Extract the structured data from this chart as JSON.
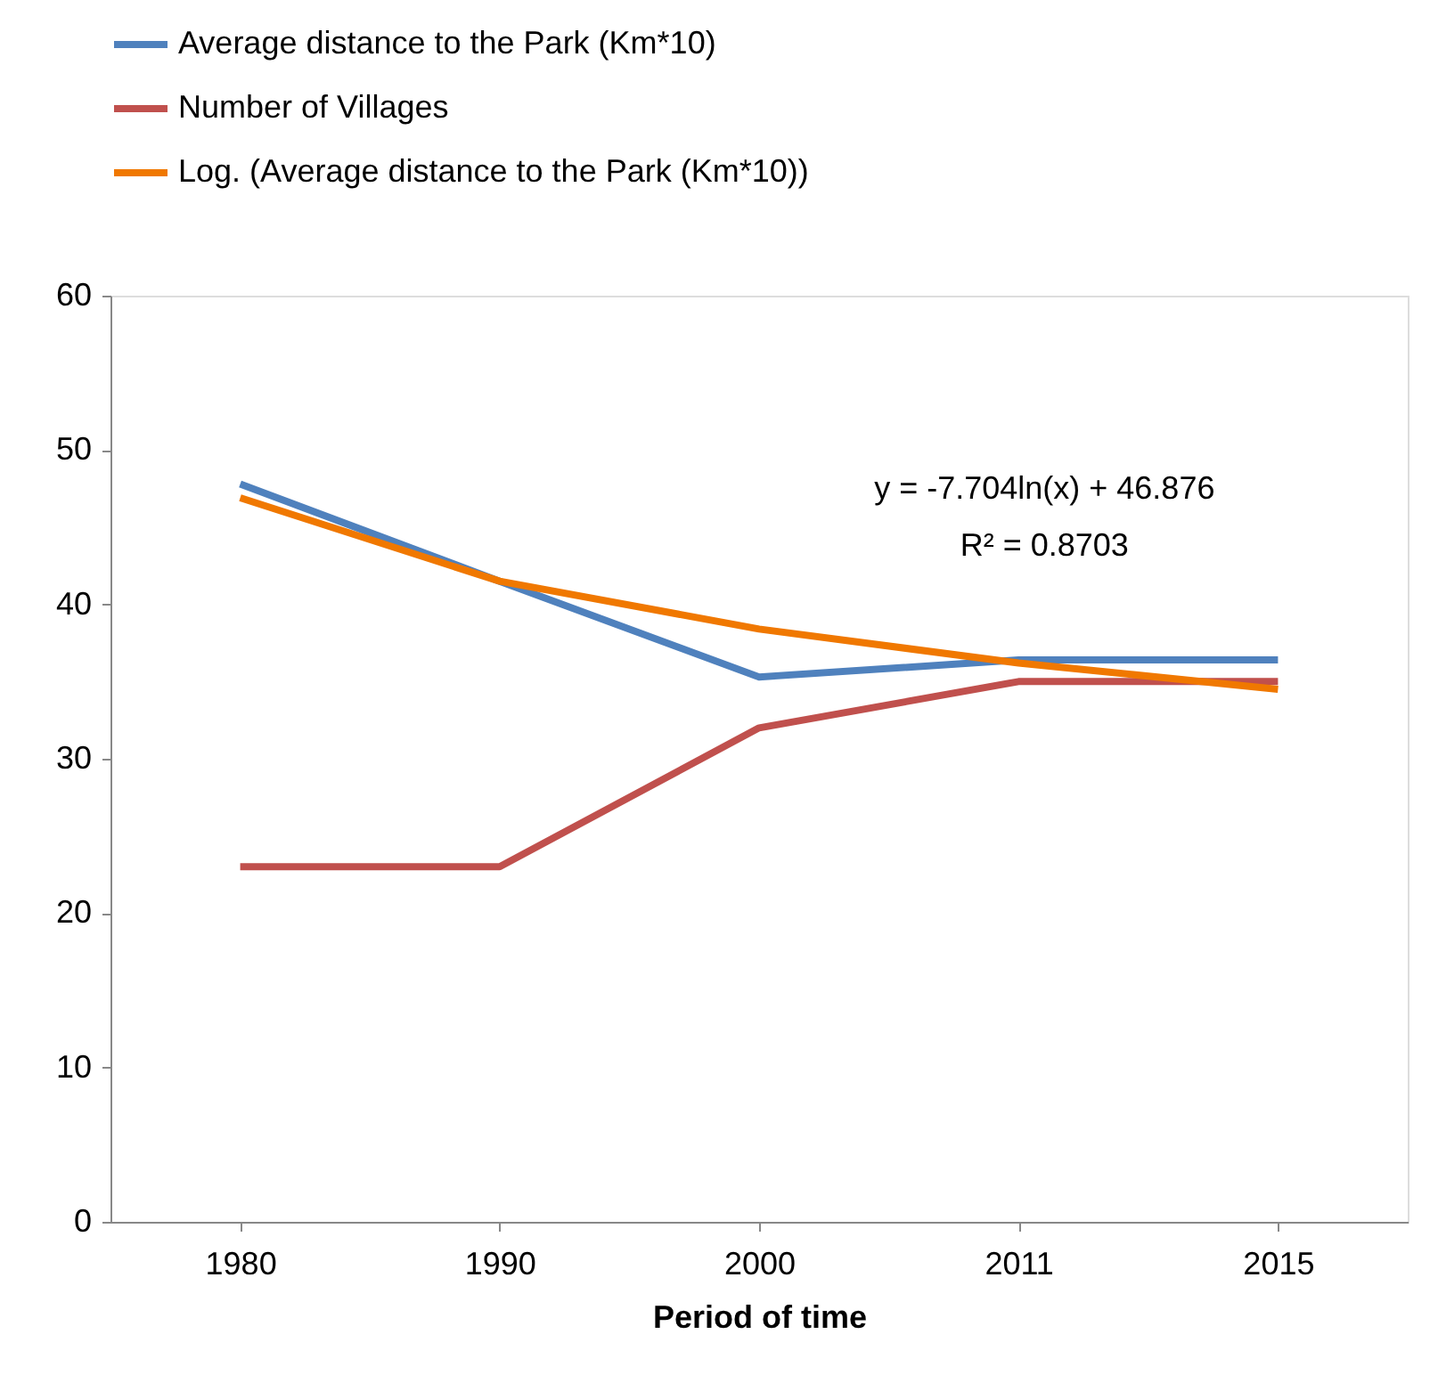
{
  "chart_data": {
    "type": "line",
    "xlabel": "Period of time",
    "categories": [
      "1980",
      "1990",
      "2000",
      "2011",
      "2015"
    ],
    "series": [
      {
        "name": "Average distance to the Park (Km*10)",
        "color": "#4f81bd",
        "values": [
          47.8,
          41.5,
          35.3,
          36.4,
          36.4
        ]
      },
      {
        "name": "Number of Villages",
        "color": "#c0504d",
        "values": [
          23,
          23,
          32,
          35,
          35
        ]
      },
      {
        "name": "Log. (Average distance to the Park (Km*10))",
        "color": "#f07800",
        "values": [
          46.9,
          41.5,
          38.4,
          36.2,
          34.5
        ]
      }
    ],
    "annotations": [
      "y = -7.704ln(x) + 46.876",
      "R² = 0.8703"
    ],
    "ylim": [
      0,
      60
    ],
    "yticks": [
      0,
      10,
      20,
      30,
      40,
      50,
      60
    ],
    "grid": false,
    "legend": "top",
    "marker": "none",
    "line_style": "solid"
  }
}
